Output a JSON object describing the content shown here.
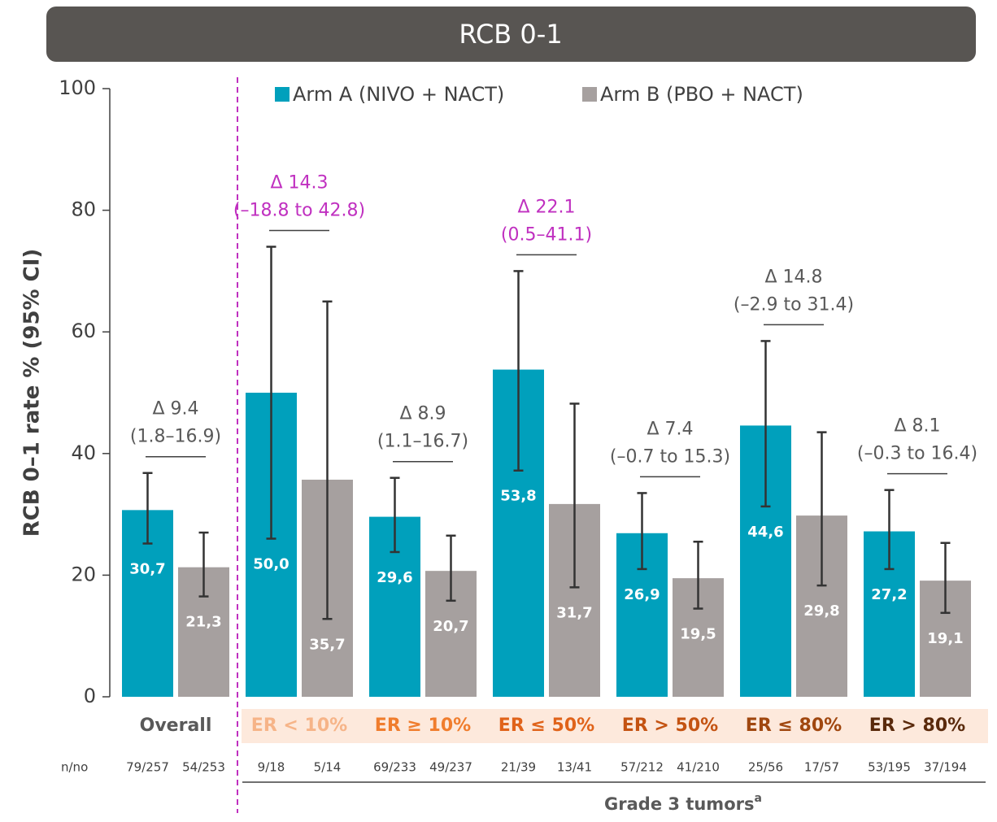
{
  "chart_data": {
    "type": "bar",
    "title": "RCB 0-1",
    "y_label": "RCB 0–1 rate % (95% CI)",
    "ylim": [
      0,
      100
    ],
    "yticks": [
      0,
      20,
      40,
      60,
      80,
      100
    ],
    "categories": [
      "Overall",
      "ER < 10%",
      "ER ≥ 10%",
      "ER ≤ 50%",
      "ER > 50%",
      "ER ≤ 80%",
      "ER > 80%"
    ],
    "category_colors": [
      "#595959",
      "#f6b488",
      "#f07d2d",
      "#e0631a",
      "#c45312",
      "#a0470f",
      "#5a2a0c"
    ],
    "series": [
      {
        "name": "Arm A (NIVO + NACT)",
        "color": "#00a0bc",
        "values": [
          30.7,
          50.0,
          29.6,
          53.8,
          26.9,
          44.6,
          27.2
        ],
        "value_labels": [
          "30,7",
          "50,0",
          "29,6",
          "53,8",
          "26,9",
          "44,6",
          "27,2"
        ],
        "ci_low": [
          25.2,
          26,
          23.8,
          37.2,
          21,
          31.3,
          21
        ],
        "ci_high": [
          36.8,
          74,
          36,
          70,
          33.5,
          58.5,
          34
        ],
        "n": [
          "79/257",
          "9/18",
          "69/233",
          "21/39",
          "57/212",
          "25/56",
          "53/195"
        ]
      },
      {
        "name": "Arm B (PBO + NACT)",
        "color": "#a6a09f",
        "values": [
          21.3,
          35.7,
          20.7,
          31.7,
          19.5,
          29.8,
          19.1
        ],
        "value_labels": [
          "21,3",
          "35,7",
          "20,7",
          "31,7",
          "19,5",
          "29,8",
          "19,1"
        ],
        "ci_low": [
          16.5,
          12.8,
          15.8,
          18,
          14.5,
          18.3,
          13.8
        ],
        "ci_high": [
          27,
          65,
          26.5,
          48.2,
          25.5,
          43.5,
          25.3
        ],
        "n": [
          "54/253",
          "5/14",
          "49/237",
          "13/41",
          "41/210",
          "17/57",
          "37/194"
        ]
      }
    ],
    "annotations": [
      {
        "lines": [
          "Δ 9.4",
          "(1.8–16.9)"
        ],
        "color": "#595959"
      },
      {
        "lines": [
          "Δ 14.3",
          "(–18.8 to 42.8)"
        ],
        "color": "#c030c0"
      },
      {
        "lines": [
          "Δ 8.9",
          "(1.1–16.7)"
        ],
        "color": "#595959"
      },
      {
        "lines": [
          "Δ 22.1",
          "(0.5–41.1)"
        ],
        "color": "#c030c0"
      },
      {
        "lines": [
          "Δ 7.4",
          "(–0.7 to 15.3)"
        ],
        "color": "#595959"
      },
      {
        "lines": [
          "Δ 14.8",
          "(–2.9 to 31.4)"
        ],
        "color": "#595959"
      },
      {
        "lines": [
          "Δ 8.1",
          "(–0.3 to 16.4)"
        ],
        "color": "#595959"
      }
    ],
    "n_label": "n/no",
    "group_label": "Grade 3 tumors",
    "group_label_sup": "a"
  }
}
